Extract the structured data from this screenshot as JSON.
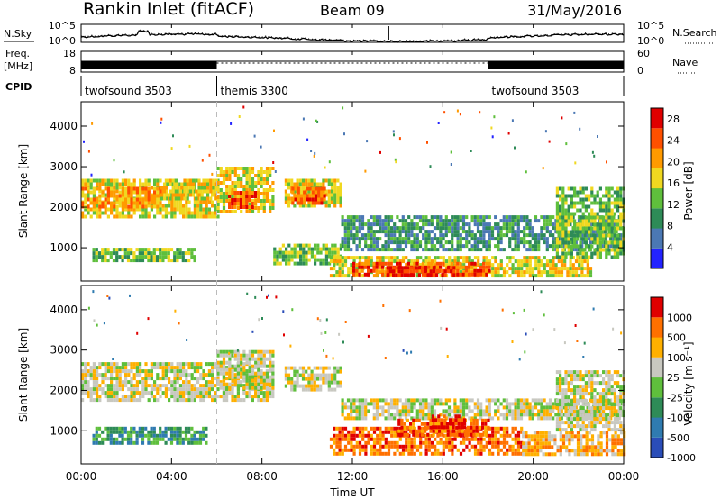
{
  "header": {
    "title": "Rankin Inlet (fitACF)",
    "beam": "Beam 09",
    "date": "31/May/2016"
  },
  "noise_panel": {
    "left_label": "N.Sky",
    "right_label": "N.Search",
    "ticks_left": [
      "10^5",
      "10^0"
    ],
    "ticks_right": [
      "10^5",
      "10^0"
    ]
  },
  "freq_panel": {
    "left_label_1": "Freq.",
    "left_label_2": "[MHz]",
    "right_label": "Nave",
    "ticks_left": [
      "18",
      "8"
    ],
    "ticks_right": [
      "60",
      "0"
    ]
  },
  "cpid": {
    "label": "CPID",
    "segments": [
      {
        "name": "twofsound 3503",
        "start": 0,
        "end": 6
      },
      {
        "name": "themis 3300",
        "start": 6,
        "end": 18
      },
      {
        "name": "twofsound 3503",
        "start": 18,
        "end": 24
      }
    ]
  },
  "x_axis": {
    "label": "Time UT",
    "ticks": [
      "00:00",
      "04:00",
      "08:00",
      "12:00",
      "16:00",
      "20:00",
      "00:00"
    ],
    "tick_values": [
      0,
      4,
      8,
      12,
      16,
      20,
      24
    ]
  },
  "chart_data": [
    {
      "type": "heatmap",
      "name": "power",
      "ylabel": "Slant Range [km]",
      "y_ticks": [
        "1000",
        "2000",
        "3000",
        "4000"
      ],
      "y_tick_values": [
        1000,
        2000,
        3000,
        4000
      ],
      "ylim": [
        180,
        4600
      ],
      "xlim": [
        0,
        24
      ],
      "colorbar_label": "Power [dB]",
      "colorbar_ticks": [
        "4",
        "8",
        "12",
        "16",
        "20",
        "24",
        "28"
      ],
      "colorbar_values": [
        4,
        8,
        12,
        16,
        20,
        24,
        28
      ],
      "colorbar_range": [
        0,
        30
      ],
      "colors": [
        "#2323ff",
        "#4b78b4",
        "#2e8b57",
        "#5fbf3c",
        "#f0d820",
        "#ff9a00",
        "#ff5000",
        "#e00000"
      ],
      "bands": [
        {
          "t0": 0.0,
          "t1": 6.0,
          "r0": 1800,
          "r1": 2700,
          "level": 4
        },
        {
          "t0": 0.0,
          "t1": 3.5,
          "r0": 2000,
          "r1": 2500,
          "level": 5
        },
        {
          "t0": 3.5,
          "t1": 6.0,
          "r0": 2200,
          "r1": 2700,
          "level": 4
        },
        {
          "t0": 6.0,
          "t1": 8.5,
          "r0": 1900,
          "r1": 3000,
          "level": 4
        },
        {
          "t0": 6.5,
          "t1": 7.8,
          "r0": 2000,
          "r1": 2400,
          "level": 6
        },
        {
          "t0": 0.5,
          "t1": 5.0,
          "r0": 700,
          "r1": 1000,
          "level": 3
        },
        {
          "t0": 9.0,
          "t1": 11.5,
          "r0": 2000,
          "r1": 2700,
          "level": 4
        },
        {
          "t0": 9.3,
          "t1": 10.8,
          "r0": 2100,
          "r1": 2500,
          "level": 6
        },
        {
          "t0": 11.5,
          "t1": 24.0,
          "r0": 1000,
          "r1": 1800,
          "level": 2
        },
        {
          "t0": 8.5,
          "t1": 11.5,
          "r0": 600,
          "r1": 1100,
          "level": 3
        },
        {
          "t0": 11.0,
          "t1": 22.5,
          "r0": 300,
          "r1": 800,
          "level": 4
        },
        {
          "t0": 12.0,
          "t1": 18.0,
          "r0": 350,
          "r1": 650,
          "level": 6
        },
        {
          "t0": 13.5,
          "t1": 16.5,
          "r0": 350,
          "r1": 550,
          "level": 7
        },
        {
          "t0": 21.0,
          "t1": 24.0,
          "r0": 800,
          "r1": 2500,
          "level": 3
        }
      ]
    },
    {
      "type": "heatmap",
      "name": "velocity",
      "ylabel": "Slant Range [km]",
      "y_ticks": [
        "1000",
        "2000",
        "3000",
        "4000"
      ],
      "y_tick_values": [
        1000,
        2000,
        3000,
        4000
      ],
      "ylim": [
        180,
        4600
      ],
      "xlim": [
        0,
        24
      ],
      "colorbar_label": "Velocity [m s⁻¹]",
      "colorbar_ticks": [
        "1000",
        "500",
        "100",
        "25",
        "-25",
        "-100",
        "-500",
        "-1000"
      ],
      "colors": [
        "#2a4db8",
        "#2f7bb0",
        "#2e8b57",
        "#5fbf3c",
        "#c8c8c0",
        "#ffb000",
        "#ff7000",
        "#e00000"
      ],
      "bands": [
        {
          "t0": 0.0,
          "t1": 8.5,
          "r0": 1800,
          "r1": 2700,
          "level": 4
        },
        {
          "t0": 0.5,
          "t1": 5.5,
          "r0": 700,
          "r1": 1100,
          "level": 2
        },
        {
          "t0": 6.0,
          "t1": 8.5,
          "r0": 2100,
          "r1": 3000,
          "level": 4
        },
        {
          "t0": 9.0,
          "t1": 11.5,
          "r0": 2000,
          "r1": 2600,
          "level": 4
        },
        {
          "t0": 11.5,
          "t1": 24.0,
          "r0": 1300,
          "r1": 1800,
          "level": 4
        },
        {
          "t0": 11.0,
          "t1": 19.5,
          "r0": 400,
          "r1": 1100,
          "level": 6
        },
        {
          "t0": 14.0,
          "t1": 18.0,
          "r0": 900,
          "r1": 1300,
          "level": 6
        },
        {
          "t0": 15.5,
          "t1": 17.0,
          "r0": 1100,
          "r1": 1400,
          "level": 7
        },
        {
          "t0": 19.5,
          "t1": 24.0,
          "r0": 400,
          "r1": 1000,
          "level": 5
        },
        {
          "t0": 21.0,
          "t1": 24.0,
          "r0": 1000,
          "r1": 2500,
          "level": 4
        }
      ]
    }
  ]
}
